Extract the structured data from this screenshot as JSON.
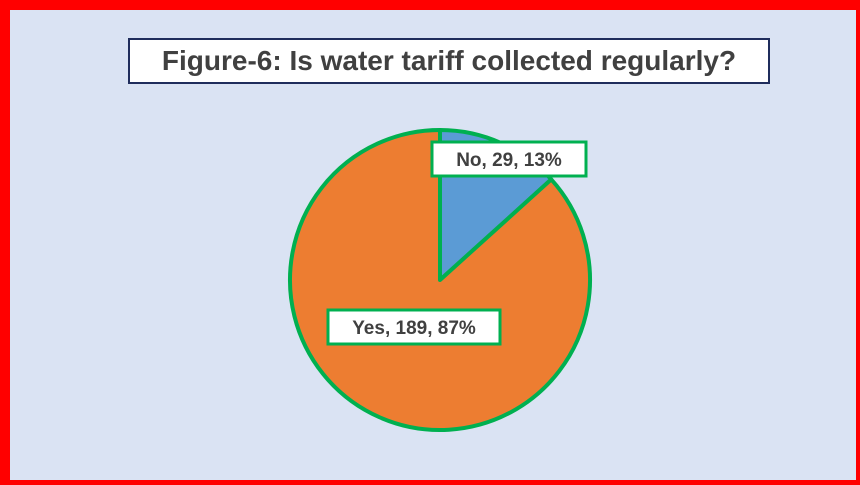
{
  "chart_data": {
    "type": "pie",
    "title": "Figure-6: Is water tariff collected regularly?",
    "categories": [
      "No",
      "Yes"
    ],
    "values": [
      29,
      189
    ],
    "percentages": [
      13,
      87
    ],
    "data_labels": [
      "No, 29, 13%",
      "Yes, 189, 87%"
    ],
    "colors": [
      "#5b9bd5",
      "#ed7d31"
    ],
    "slice_border_color": "#00b050",
    "legend": "none",
    "start_angle_deg": 0,
    "direction": "clockwise"
  },
  "colors": {
    "frame_border": "#ff0000",
    "plot_background": "#dae3f3",
    "title_border": "#1f2d5c",
    "label_border": "#00b050"
  }
}
